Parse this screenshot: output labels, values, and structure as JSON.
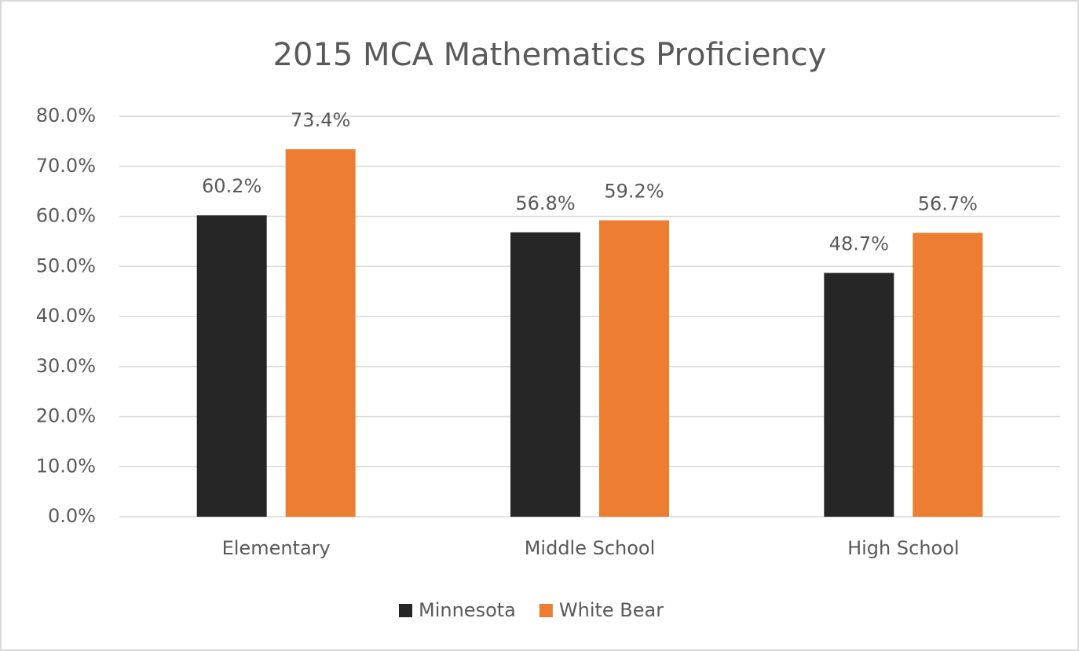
{
  "chart_data": {
    "type": "bar",
    "title": "2015 MCA Mathematics Proficiency",
    "categories": [
      "Elementary",
      "Middle School",
      "High School"
    ],
    "series": [
      {
        "name": "Minnesota",
        "color": "#262626",
        "values": [
          60.2,
          56.8,
          48.7
        ],
        "value_labels": [
          "60.2%",
          "56.8%",
          "48.7%"
        ]
      },
      {
        "name": "White Bear",
        "color": "#ed7d31",
        "values": [
          73.4,
          59.2,
          56.7
        ],
        "value_labels": [
          "73.4%",
          "59.2%",
          "56.7%"
        ]
      }
    ],
    "ylim": [
      0,
      80
    ],
    "yticks": [
      {
        "value": 0,
        "label": "0.0%"
      },
      {
        "value": 10,
        "label": "10.0%"
      },
      {
        "value": 20,
        "label": "20.0%"
      },
      {
        "value": 30,
        "label": "30.0%"
      },
      {
        "value": 40,
        "label": "40.0%"
      },
      {
        "value": 50,
        "label": "50.0%"
      },
      {
        "value": 60,
        "label": "60.0%"
      },
      {
        "value": 70,
        "label": "70.0%"
      },
      {
        "value": 80,
        "label": "80.0%"
      }
    ],
    "grid": true,
    "legend": "bottom"
  }
}
